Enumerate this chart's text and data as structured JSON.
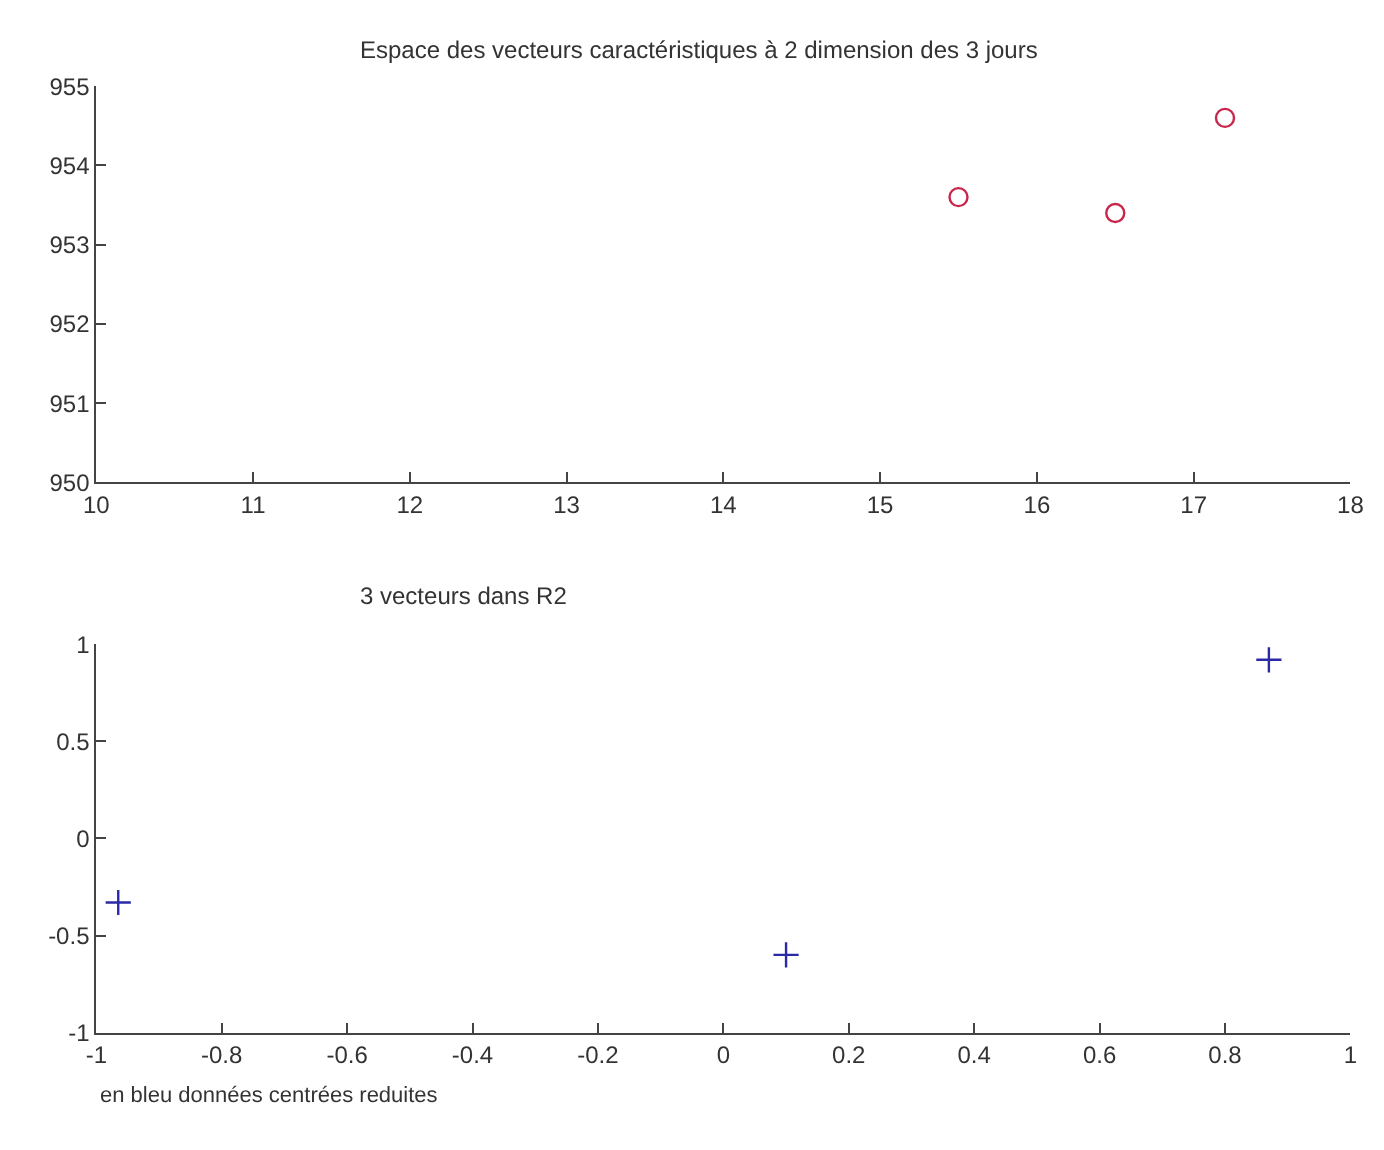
{
  "chart_data": [
    {
      "type": "scatter",
      "title": "Espace des vecteurs caractéristiques à 2 dimension des 3 jours",
      "x": [
        15.5,
        16.5,
        17.2
      ],
      "values": [
        953.6,
        953.4,
        954.6
      ],
      "color": "#c8264a",
      "marker": "circle",
      "xlim": [
        10,
        18
      ],
      "xticks": [
        10,
        11,
        12,
        13,
        14,
        15,
        16,
        17,
        18
      ],
      "ylim": [
        950,
        955
      ],
      "yticks": [
        950,
        951,
        952,
        953,
        954,
        955
      ]
    },
    {
      "type": "scatter",
      "title": "3 vecteurs dans R2",
      "x": [
        -0.965,
        0.1,
        0.87
      ],
      "values": [
        -0.33,
        -0.6,
        0.92
      ],
      "color": "#2a2aa8",
      "marker": "cross",
      "xlim": [
        -1,
        1
      ],
      "xticks": [
        -1,
        -0.8,
        -0.6,
        -0.4,
        -0.2,
        0,
        0.2,
        0.4,
        0.6,
        0.8,
        1
      ],
      "ylim": [
        -1,
        1
      ],
      "yticks": [
        -1,
        -0.5,
        0,
        0.5,
        1
      ],
      "annotations": [
        "en bleu données centrées reduites"
      ]
    }
  ]
}
